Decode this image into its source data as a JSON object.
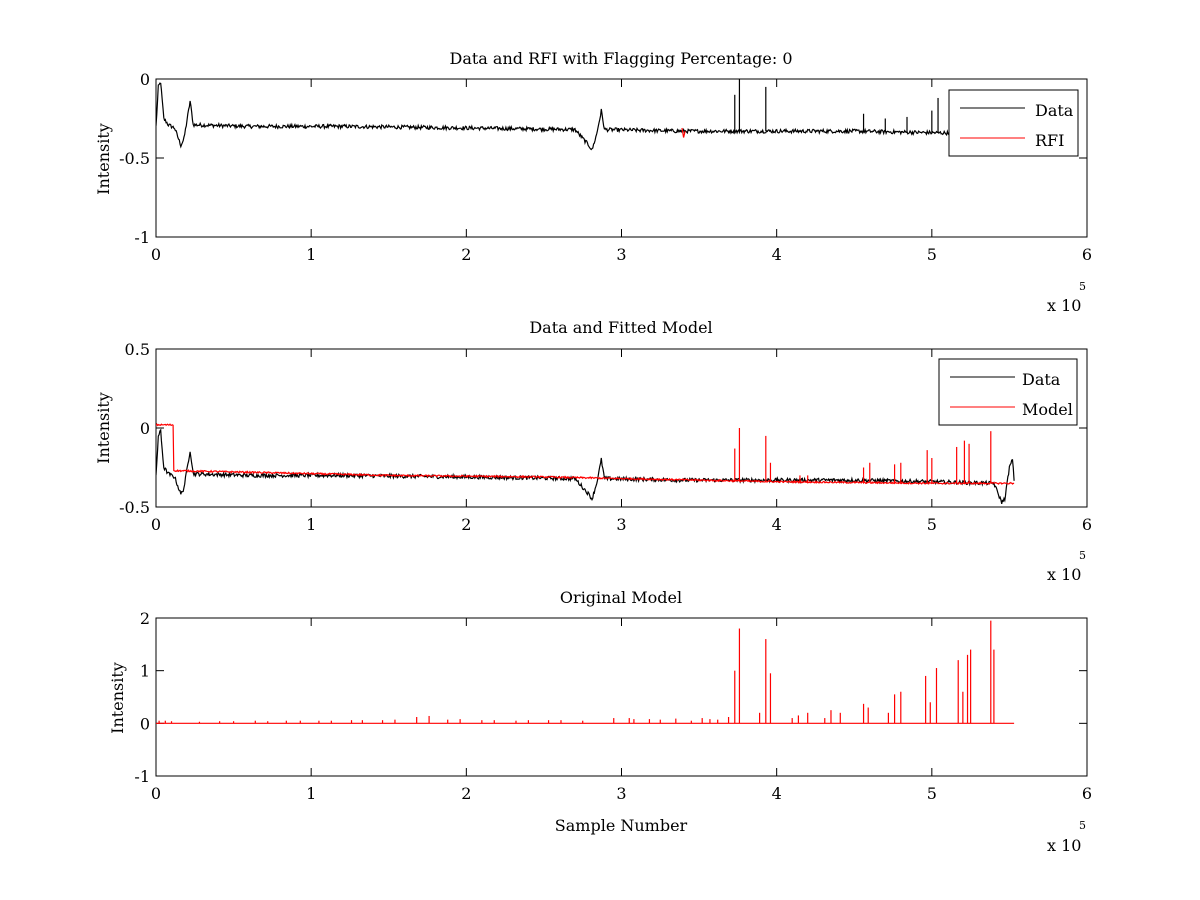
{
  "figure": {
    "background": "#ffffff",
    "line_colors": {
      "data": "#000000",
      "rfi": "#ff0000",
      "model": "#ff0000"
    }
  },
  "chart_data": [
    {
      "type": "line",
      "title": "Data and RFI with Flagging Percentage: 0",
      "xlabel": "",
      "ylabel": "Intensity",
      "xlim": [
        0,
        600000
      ],
      "ylim": [
        -1,
        0
      ],
      "x_ticks": [
        "0",
        "1",
        "2",
        "3",
        "4",
        "5",
        "6"
      ],
      "y_ticks": [
        "-1",
        "-0.5",
        "0"
      ],
      "x_multiplier": {
        "text": "x 10",
        "exponent": "5"
      },
      "legend": {
        "position": "top-right",
        "entries": [
          "Data",
          "RFI"
        ]
      },
      "series": [
        {
          "name": "Data",
          "color": "#000000",
          "noise": 0.012,
          "points": [
            [
              0,
              -0.3
            ],
            [
              1500,
              -0.05
            ],
            [
              3000,
              -0.02
            ],
            [
              5000,
              -0.25
            ],
            [
              8000,
              -0.29
            ],
            [
              12000,
              -0.31
            ],
            [
              16000,
              -0.42
            ],
            [
              18000,
              -0.38
            ],
            [
              21000,
              -0.2
            ],
            [
              22000,
              -0.14
            ],
            [
              24000,
              -0.29
            ],
            [
              60000,
              -0.3
            ],
            [
              120000,
              -0.3
            ],
            [
              200000,
              -0.31
            ],
            [
              270000,
              -0.32
            ],
            [
              279000,
              -0.42
            ],
            [
              281000,
              -0.45
            ],
            [
              284000,
              -0.35
            ],
            [
              287000,
              -0.2
            ],
            [
              289000,
              -0.32
            ],
            [
              340000,
              -0.33
            ],
            [
              400000,
              -0.33
            ],
            [
              450000,
              -0.33
            ],
            [
              500000,
              -0.34
            ],
            [
              553000,
              -0.35
            ]
          ],
          "spikes": [
            [
              373000,
              -0.1
            ],
            [
              376000,
              0.0
            ],
            [
              393000,
              -0.05
            ],
            [
              456000,
              -0.22
            ],
            [
              470000,
              -0.25
            ],
            [
              484000,
              -0.24
            ],
            [
              500000,
              -0.2
            ],
            [
              504000,
              -0.12
            ],
            [
              520000,
              -0.24
            ]
          ]
        },
        {
          "name": "RFI",
          "color": "#ff0000",
          "points": [
            [
              339000,
              -0.31
            ],
            [
              340000,
              -0.37
            ],
            [
              341000,
              -0.33
            ]
          ]
        }
      ]
    },
    {
      "type": "line",
      "title": "Data and Fitted Model",
      "xlabel": "",
      "ylabel": "Intensity",
      "xlim": [
        0,
        600000
      ],
      "ylim": [
        -0.5,
        0.5
      ],
      "x_ticks": [
        "0",
        "1",
        "2",
        "3",
        "4",
        "5",
        "6"
      ],
      "y_ticks": [
        "-0.5",
        "0",
        "0.5"
      ],
      "x_multiplier": {
        "text": "x 10",
        "exponent": "5"
      },
      "legend": {
        "position": "top-right",
        "entries": [
          "Data",
          "Model"
        ]
      },
      "series": [
        {
          "name": "Data",
          "color": "#000000",
          "noise": 0.012,
          "points": [
            [
              0,
              -0.3
            ],
            [
              1500,
              -0.05
            ],
            [
              3000,
              -0.02
            ],
            [
              5000,
              -0.25
            ],
            [
              8000,
              -0.29
            ],
            [
              12000,
              -0.31
            ],
            [
              16000,
              -0.42
            ],
            [
              18000,
              -0.38
            ],
            [
              21000,
              -0.2
            ],
            [
              22000,
              -0.14
            ],
            [
              24000,
              -0.29
            ],
            [
              60000,
              -0.3
            ],
            [
              120000,
              -0.3
            ],
            [
              200000,
              -0.31
            ],
            [
              270000,
              -0.32
            ],
            [
              279000,
              -0.42
            ],
            [
              281000,
              -0.45
            ],
            [
              284000,
              -0.35
            ],
            [
              287000,
              -0.2
            ],
            [
              289000,
              -0.32
            ],
            [
              340000,
              -0.33
            ],
            [
              400000,
              -0.33
            ],
            [
              450000,
              -0.33
            ],
            [
              500000,
              -0.34
            ],
            [
              540000,
              -0.35
            ],
            [
              545000,
              -0.47
            ],
            [
              547000,
              -0.45
            ],
            [
              550000,
              -0.25
            ],
            [
              552000,
              -0.2
            ],
            [
              553000,
              -0.33
            ]
          ]
        },
        {
          "name": "Model",
          "color": "#ff0000",
          "noise": 0.005,
          "points": [
            [
              0,
              0.02
            ],
            [
              11000,
              0.02
            ],
            [
              11500,
              -0.27
            ],
            [
              60000,
              -0.28
            ],
            [
              150000,
              -0.3
            ],
            [
              250000,
              -0.31
            ],
            [
              300000,
              -0.32
            ],
            [
              400000,
              -0.34
            ],
            [
              500000,
              -0.35
            ],
            [
              540000,
              -0.35
            ],
            [
              553000,
              -0.35
            ]
          ],
          "spikes": [
            [
              373000,
              -0.13
            ],
            [
              376000,
              0.0
            ],
            [
              393000,
              -0.05
            ],
            [
              396000,
              -0.22
            ],
            [
              415000,
              -0.3
            ],
            [
              420000,
              -0.3
            ],
            [
              456000,
              -0.25
            ],
            [
              460000,
              -0.22
            ],
            [
              476000,
              -0.23
            ],
            [
              480000,
              -0.22
            ],
            [
              497000,
              -0.14
            ],
            [
              500000,
              -0.19
            ],
            [
              516000,
              -0.12
            ],
            [
              521000,
              -0.08
            ],
            [
              524000,
              -0.1
            ],
            [
              538000,
              -0.02
            ]
          ]
        }
      ]
    },
    {
      "type": "line",
      "title": "Original Model",
      "xlabel": "Sample Number",
      "ylabel": "Intensity",
      "xlim": [
        0,
        600000
      ],
      "ylim": [
        -1,
        2
      ],
      "x_ticks": [
        "0",
        "1",
        "2",
        "3",
        "4",
        "5",
        "6"
      ],
      "y_ticks": [
        "-1",
        "0",
        "1",
        "2"
      ],
      "x_multiplier": {
        "text": "x 10",
        "exponent": "5"
      },
      "series": [
        {
          "name": "Original Model",
          "color": "#ff0000",
          "noise": 0.0,
          "points": [
            [
              0,
              0.0
            ],
            [
              553000,
              0.0
            ]
          ],
          "spikes": [
            [
              2000,
              0.05
            ],
            [
              6000,
              0.05
            ],
            [
              10000,
              0.04
            ],
            [
              28000,
              0.03
            ],
            [
              41000,
              0.04
            ],
            [
              50000,
              0.04
            ],
            [
              64000,
              0.05
            ],
            [
              72000,
              0.04
            ],
            [
              84000,
              0.05
            ],
            [
              93000,
              0.05
            ],
            [
              105000,
              0.05
            ],
            [
              113000,
              0.05
            ],
            [
              126000,
              0.06
            ],
            [
              133000,
              0.06
            ],
            [
              146000,
              0.06
            ],
            [
              154000,
              0.07
            ],
            [
              168000,
              0.12
            ],
            [
              176000,
              0.14
            ],
            [
              188000,
              0.07
            ],
            [
              196000,
              0.08
            ],
            [
              210000,
              0.06
            ],
            [
              218000,
              0.06
            ],
            [
              232000,
              0.05
            ],
            [
              240000,
              0.06
            ],
            [
              253000,
              0.06
            ],
            [
              261000,
              0.06
            ],
            [
              275000,
              0.05
            ],
            [
              295000,
              0.1
            ],
            [
              305000,
              0.1
            ],
            [
              308000,
              0.08
            ],
            [
              318000,
              0.08
            ],
            [
              325000,
              0.07
            ],
            [
              335000,
              0.09
            ],
            [
              345000,
              0.05
            ],
            [
              352000,
              0.1
            ],
            [
              357000,
              0.08
            ],
            [
              362000,
              0.07
            ],
            [
              369000,
              0.12
            ],
            [
              373000,
              1.0
            ],
            [
              376000,
              1.8
            ],
            [
              389000,
              0.2
            ],
            [
              393000,
              1.6
            ],
            [
              396000,
              0.95
            ],
            [
              410000,
              0.1
            ],
            [
              414000,
              0.15
            ],
            [
              420000,
              0.2
            ],
            [
              431000,
              0.1
            ],
            [
              435000,
              0.25
            ],
            [
              441000,
              0.2
            ],
            [
              456000,
              0.37
            ],
            [
              459000,
              0.3
            ],
            [
              472000,
              0.2
            ],
            [
              476000,
              0.55
            ],
            [
              480000,
              0.6
            ],
            [
              496000,
              0.9
            ],
            [
              499000,
              0.4
            ],
            [
              503000,
              1.05
            ],
            [
              517000,
              1.2
            ],
            [
              520000,
              0.6
            ],
            [
              523000,
              1.3
            ],
            [
              525000,
              1.4
            ],
            [
              538000,
              1.95
            ],
            [
              540000,
              1.4
            ]
          ]
        }
      ]
    }
  ]
}
